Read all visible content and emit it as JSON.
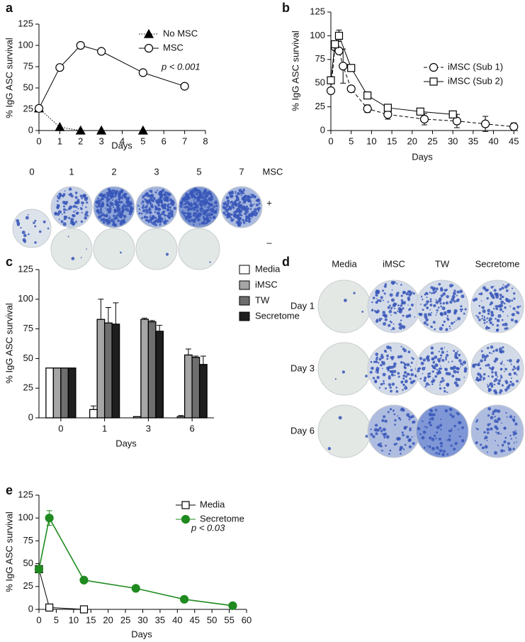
{
  "panel_labels": [
    "a",
    "b",
    "c",
    "d",
    "e"
  ],
  "chart_data": [
    {
      "type": "line",
      "xlabel": "Days",
      "ylabel": "% IgG ASC survival",
      "annotation": "p < 0.001",
      "x": [
        0,
        1,
        2,
        3,
        5,
        7
      ],
      "series": [
        {
          "name": "No MSC",
          "color": "#000000",
          "marker": "triangle",
          "filled": true,
          "dash": "dotted",
          "values": [
            26,
            4,
            0,
            0,
            0,
            null
          ]
        },
        {
          "name": "MSC",
          "color": "#000000",
          "marker": "circle",
          "filled": false,
          "dash": "solid",
          "values": [
            26,
            74,
            100,
            93,
            68,
            52
          ]
        }
      ],
      "xlim": [
        0,
        8
      ],
      "xticks": [
        0,
        1,
        2,
        3,
        4,
        5,
        6,
        7,
        8
      ],
      "ylim": [
        0,
        125
      ],
      "yticks": [
        0,
        25,
        50,
        75,
        100,
        125
      ]
    },
    {
      "type": "line",
      "xlabel": "Days",
      "ylabel": "% IgG ASC survival",
      "series": [
        {
          "name": "iMSC (Sub 1)",
          "color": "#000000",
          "marker": "circle",
          "filled": false,
          "dash": "dashed",
          "x": [
            0,
            1,
            2,
            3,
            5,
            9,
            14,
            23,
            31,
            38,
            45
          ],
          "values": [
            42,
            88,
            84,
            68,
            44,
            23,
            17,
            12,
            10,
            7,
            4
          ],
          "errors": [
            null,
            null,
            null,
            18,
            null,
            4,
            5,
            6,
            7,
            8,
            4
          ]
        },
        {
          "name": "iMSC (Sub 2)",
          "color": "#000000",
          "marker": "square",
          "filled": false,
          "dash": "solid",
          "x": [
            0,
            1,
            2,
            5,
            9,
            14,
            22,
            30
          ],
          "values": [
            53,
            91,
            100,
            66,
            37,
            24,
            20,
            17
          ],
          "errors": [
            null,
            null,
            6,
            null,
            null,
            null,
            null,
            3
          ]
        }
      ],
      "xlim": [
        0,
        46
      ],
      "xticks": [
        0,
        5,
        10,
        15,
        20,
        25,
        30,
        35,
        40,
        45
      ],
      "ylim": [
        0,
        125
      ],
      "yticks": [
        0,
        25,
        50,
        75,
        100,
        125
      ]
    },
    {
      "type": "bar",
      "xlabel": "Days",
      "ylabel": "% IgG ASC survival",
      "categories": [
        "0",
        "1",
        "3",
        "6"
      ],
      "series": [
        {
          "name": "Media",
          "color": "#ffffff",
          "values": [
            42,
            7,
            1,
            1
          ],
          "errors": [
            null,
            3,
            null,
            1
          ]
        },
        {
          "name": "iMSC",
          "color": "#a6a6a6",
          "values": [
            42,
            83,
            83,
            53
          ],
          "errors": [
            null,
            17,
            1,
            5
          ]
        },
        {
          "name": "TW",
          "color": "#6e6e6e",
          "values": [
            42,
            80,
            81,
            51
          ],
          "errors": [
            null,
            13,
            1,
            1
          ]
        },
        {
          "name": "Secretome",
          "color": "#1e1e1e",
          "values": [
            42,
            79,
            73,
            45
          ],
          "errors": [
            null,
            18,
            5,
            7
          ]
        }
      ],
      "ylim": [
        0,
        125
      ],
      "yticks": [
        0,
        25,
        50,
        75,
        100,
        125
      ]
    },
    {
      "type": "line",
      "xlabel": "Days",
      "ylabel": "% IgG ASC survival",
      "annotation": "p < 0.03",
      "series": [
        {
          "name": "Media",
          "color": "#000000",
          "marker": "square",
          "filled": false,
          "dash": "solid",
          "x": [
            0,
            3,
            13
          ],
          "values": [
            44,
            2,
            0
          ]
        },
        {
          "name": "Secretome",
          "color": "#1f8a1f",
          "marker": "circle",
          "filled": true,
          "dash": "solid",
          "x": [
            0,
            3,
            13,
            28,
            42,
            56
          ],
          "values": [
            44,
            100,
            32,
            23,
            11,
            4
          ],
          "errors": [
            null,
            8,
            null,
            null,
            null,
            null
          ]
        }
      ],
      "xlim": [
        0,
        60
      ],
      "xticks": [
        0,
        5,
        10,
        15,
        20,
        25,
        30,
        35,
        40,
        45,
        50,
        55,
        60
      ],
      "ylim": [
        0,
        125
      ],
      "yticks": [
        0,
        25,
        50,
        75,
        100,
        125
      ]
    }
  ],
  "well_grids": [
    {
      "columns": [
        "0",
        "1",
        "2",
        "3",
        "5",
        "7"
      ],
      "row_title": "MSC",
      "rows": [
        "+",
        "–"
      ]
    },
    {
      "columns": [
        "Media",
        "iMSC",
        "TW",
        "Secretome"
      ],
      "rows": [
        "Day 1",
        "Day 3",
        "Day 6"
      ]
    }
  ]
}
